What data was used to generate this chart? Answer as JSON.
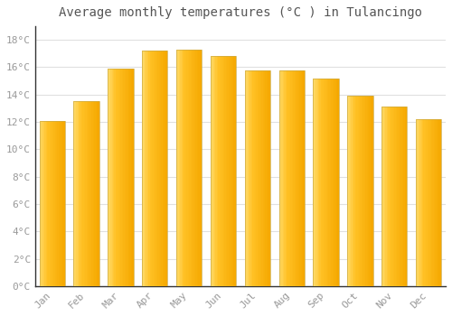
{
  "title": "Average monthly temperatures (°C ) in Tulancingo",
  "months": [
    "Jan",
    "Feb",
    "Mar",
    "Apr",
    "May",
    "Jun",
    "Jul",
    "Aug",
    "Sep",
    "Oct",
    "Nov",
    "Dec"
  ],
  "values": [
    12.1,
    13.5,
    15.9,
    17.2,
    17.3,
    16.8,
    15.8,
    15.8,
    15.2,
    13.9,
    13.1,
    12.2
  ],
  "bar_color_dark": "#F5A800",
  "bar_color_light": "#FFD966",
  "bar_color_mid": "#FFC125",
  "bar_edge_color": "#B8860B",
  "background_color": "#FFFFFF",
  "grid_color": "#E0E0E0",
  "text_color": "#999999",
  "title_color": "#555555",
  "ylim": [
    0,
    19
  ],
  "yticks": [
    0,
    2,
    4,
    6,
    8,
    10,
    12,
    14,
    16,
    18
  ],
  "ytick_labels": [
    "0°C",
    "2°C",
    "4°C",
    "6°C",
    "8°C",
    "10°C",
    "12°C",
    "14°C",
    "16°C",
    "18°C"
  ],
  "title_fontsize": 10,
  "tick_fontsize": 8,
  "font_family": "monospace"
}
